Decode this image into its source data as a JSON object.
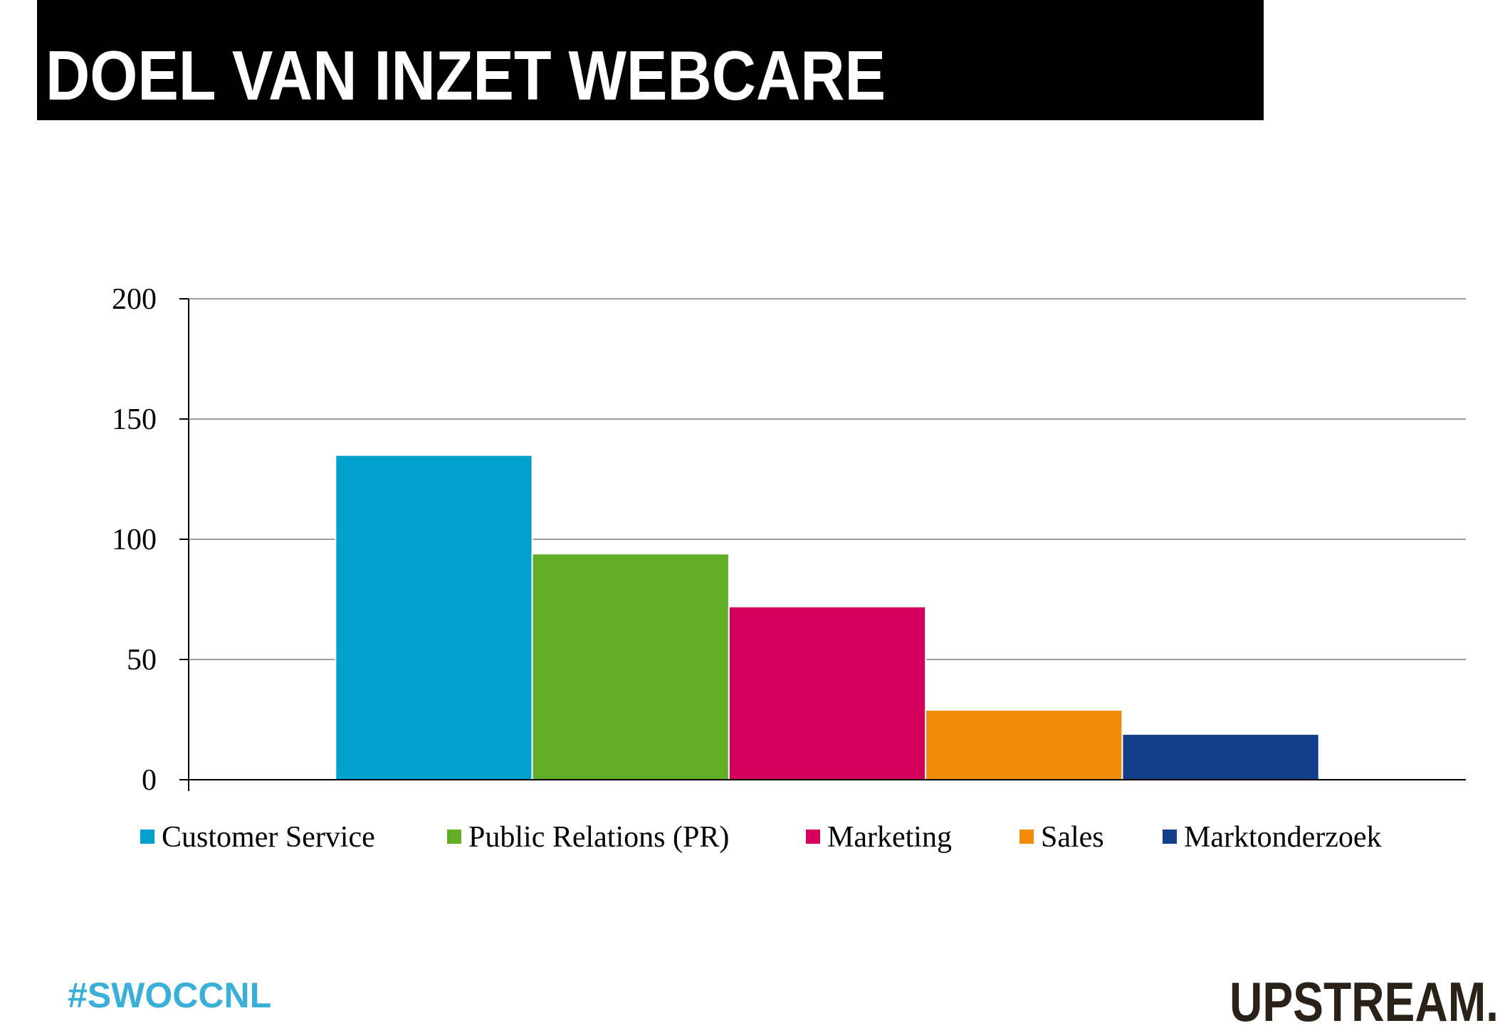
{
  "chart_data": {
    "type": "bar",
    "title": "DOEL VAN INZET WEBCARE",
    "categories": [
      null
    ],
    "series": [
      {
        "name": "Customer Service",
        "color": "#00a2cd",
        "values": [
          135
        ]
      },
      {
        "name": "Public Relations (PR)",
        "color": "#62ae26",
        "values": [
          94
        ]
      },
      {
        "name": "Marketing",
        "color": "#d4005c",
        "values": [
          72
        ]
      },
      {
        "name": "Sales",
        "color": "#f08c09",
        "values": [
          29
        ]
      },
      {
        "name": "Marktonderzoek",
        "color": "#133e8a",
        "values": [
          19
        ]
      }
    ],
    "ylim": [
      0,
      200
    ],
    "yticks": [
      0,
      50,
      100,
      150,
      200
    ],
    "grid": true,
    "legend": "bottom"
  },
  "hashtag": "#SWOCCNL",
  "logo": "UPSTREAM."
}
